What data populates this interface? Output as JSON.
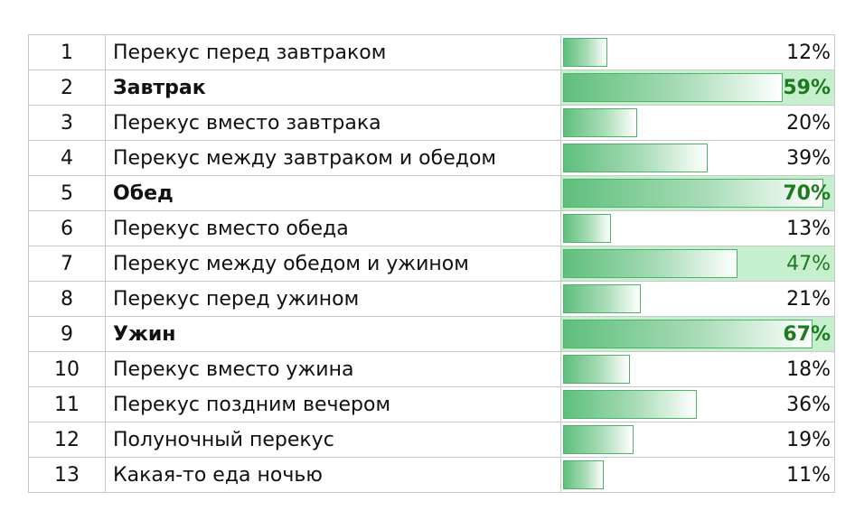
{
  "chart_data": {
    "type": "table",
    "max_value": 70,
    "rows": [
      {
        "n": "1",
        "label": "Перекус перед завтраком",
        "value": 12,
        "pct": "12%",
        "bold": false,
        "highlight": false
      },
      {
        "n": "2",
        "label": "Завтрак",
        "value": 59,
        "pct": "59%",
        "bold": true,
        "highlight": true
      },
      {
        "n": "3",
        "label": "Перекус вместо завтрака",
        "value": 20,
        "pct": "20%",
        "bold": false,
        "highlight": false
      },
      {
        "n": "4",
        "label": "Перекус между завтраком и обедом",
        "value": 39,
        "pct": "39%",
        "bold": false,
        "highlight": false
      },
      {
        "n": "5",
        "label": "Обед",
        "value": 70,
        "pct": "70%",
        "bold": true,
        "highlight": true
      },
      {
        "n": "6",
        "label": "Перекус вместо обеда",
        "value": 13,
        "pct": "13%",
        "bold": false,
        "highlight": false
      },
      {
        "n": "7",
        "label": "Перекус между обедом и ужином",
        "value": 47,
        "pct": "47%",
        "bold": false,
        "highlight": true
      },
      {
        "n": "8",
        "label": "Перекус перед ужином",
        "value": 21,
        "pct": "21%",
        "bold": false,
        "highlight": false
      },
      {
        "n": "9",
        "label": "Ужин",
        "value": 67,
        "pct": "67%",
        "bold": true,
        "highlight": true
      },
      {
        "n": "10",
        "label": "Перекус вместо ужина",
        "value": 18,
        "pct": "18%",
        "bold": false,
        "highlight": false
      },
      {
        "n": "11",
        "label": "Перекус поздним вечером",
        "value": 36,
        "pct": "36%",
        "bold": false,
        "highlight": false
      },
      {
        "n": "12",
        "label": "Полуночный перекус",
        "value": 19,
        "pct": "19%",
        "bold": false,
        "highlight": false
      },
      {
        "n": "13",
        "label": "Какая-то еда ночью",
        "value": 11,
        "pct": "11%",
        "bold": false,
        "highlight": false
      }
    ],
    "colors": {
      "bar_fill": "#5fbf7d",
      "bar_border": "#4cb36a",
      "highlight_bg": "#c6efce",
      "highlight_text": "#1e7a1e",
      "grid": "#c8c8c8"
    }
  }
}
